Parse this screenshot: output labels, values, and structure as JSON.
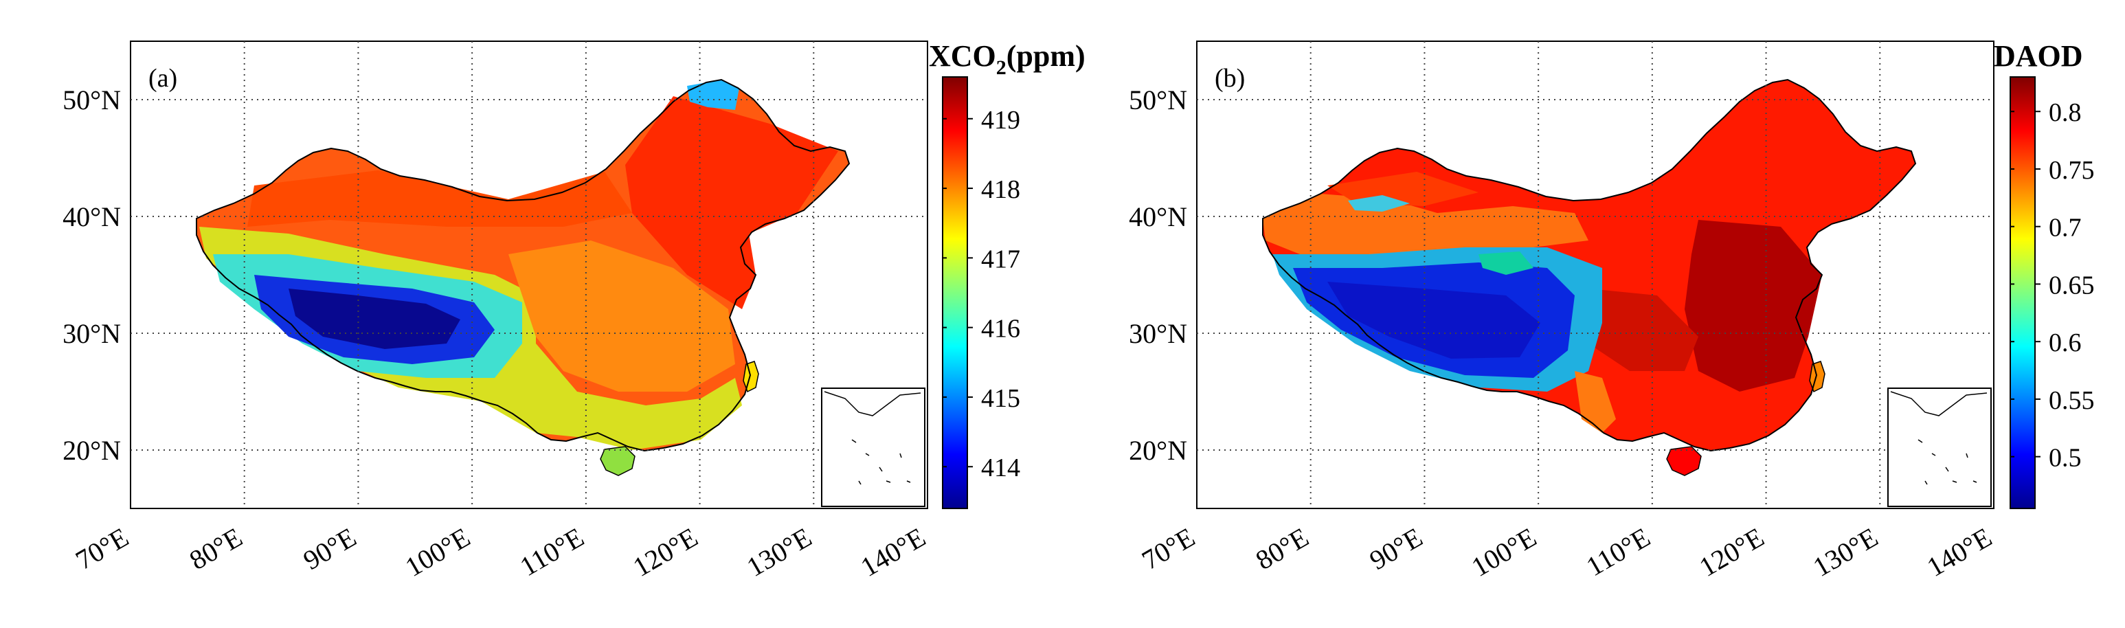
{
  "panels": [
    {
      "id": "a",
      "label": "(a)",
      "colorbar_title_main": "XCO",
      "colorbar_title_sub": "2",
      "colorbar_title_unit": "(ppm)",
      "colorbar_ticks": [
        "414",
        "415",
        "416",
        "417",
        "418",
        "419"
      ],
      "colorbar_tick_values": [
        414,
        415,
        416,
        417,
        418,
        419
      ],
      "colorbar_range": [
        413.4,
        419.6
      ]
    },
    {
      "id": "b",
      "label": "(b)",
      "colorbar_title_main": "DAOD",
      "colorbar_title_sub": "",
      "colorbar_title_unit": "",
      "colorbar_ticks": [
        "0.5",
        "0.55",
        "0.6",
        "0.65",
        "0.7",
        "0.75",
        "0.8"
      ],
      "colorbar_tick_values": [
        0.5,
        0.55,
        0.6,
        0.65,
        0.7,
        0.75,
        0.8
      ],
      "colorbar_range": [
        0.455,
        0.83
      ]
    }
  ],
  "map_extent": {
    "lon": [
      70,
      140
    ],
    "lat": [
      15,
      55
    ]
  },
  "lon_ticks": [
    "70°E",
    "80°E",
    "90°E",
    "100°E",
    "110°E",
    "120°E",
    "130°E",
    "140°E"
  ],
  "lon_values": [
    70,
    80,
    90,
    100,
    110,
    120,
    130,
    140
  ],
  "lat_ticks": [
    "20°N",
    "30°N",
    "40°N",
    "50°N"
  ],
  "lat_values": [
    20,
    30,
    40,
    50
  ],
  "colormap": [
    "#00008f",
    "#0000ff",
    "#00ffff",
    "#ffff00",
    "#ff8000",
    "#ff0000",
    "#800000"
  ]
}
